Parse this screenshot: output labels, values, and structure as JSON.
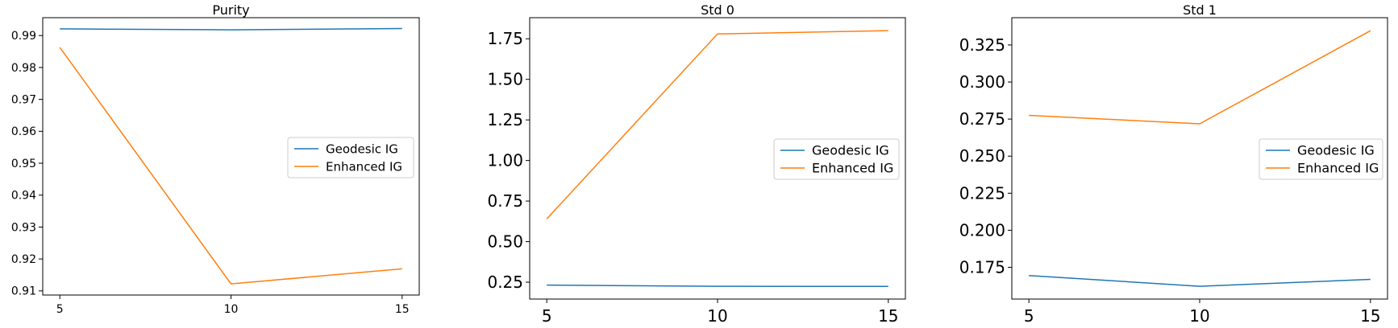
{
  "colors": {
    "geodesic": "#1f77b4",
    "enhanced": "#ff7f0e"
  },
  "chart_data": [
    {
      "type": "line",
      "title": "Purity",
      "x": [
        5,
        10,
        15
      ],
      "xticks": [
        "5",
        "10",
        "15"
      ],
      "yticks": [
        "0.91",
        "0.92",
        "0.93",
        "0.94",
        "0.95",
        "0.96",
        "0.97",
        "0.98",
        "0.99"
      ],
      "series": [
        {
          "name": "Geodesic IG",
          "values": [
            0.9921,
            0.9918,
            0.9922
          ]
        },
        {
          "name": "Enhanced IG",
          "values": [
            0.9863,
            0.9122,
            0.9169
          ]
        }
      ],
      "xlim": [
        4.5,
        15.5
      ],
      "ylim": [
        0.9087,
        0.9956
      ],
      "legend": "center-right",
      "grid": false
    },
    {
      "type": "line",
      "title": "Std 0",
      "x": [
        5,
        10,
        15
      ],
      "xticks": [
        "5",
        "10",
        "15"
      ],
      "yticks": [
        "0.25",
        "0.50",
        "0.75",
        "1.00",
        "1.25",
        "1.50",
        "1.75"
      ],
      "series": [
        {
          "name": "Geodesic IG",
          "values": [
            0.232,
            0.225,
            0.224
          ]
        },
        {
          "name": "Enhanced IG",
          "values": [
            0.64,
            1.78,
            1.8
          ]
        }
      ],
      "xlim": [
        4.5,
        15.5
      ],
      "ylim": [
        0.146,
        1.88
      ],
      "legend": "center-right",
      "grid": false
    },
    {
      "type": "line",
      "title": "Std 1",
      "x": [
        5,
        10,
        15
      ],
      "xticks": [
        "5",
        "10",
        "15"
      ],
      "yticks": [
        "0.175",
        "0.200",
        "0.225",
        "0.250",
        "0.275",
        "0.300",
        "0.325"
      ],
      "series": [
        {
          "name": "Geodesic IG",
          "values": [
            0.1695,
            0.1622,
            0.1669
          ]
        },
        {
          "name": "Enhanced IG",
          "values": [
            0.2775,
            0.2718,
            0.3346
          ]
        }
      ],
      "xlim": [
        4.5,
        15.5
      ],
      "ylim": [
        0.1536,
        0.3434
      ],
      "legend": "center-right",
      "grid": false
    }
  ]
}
